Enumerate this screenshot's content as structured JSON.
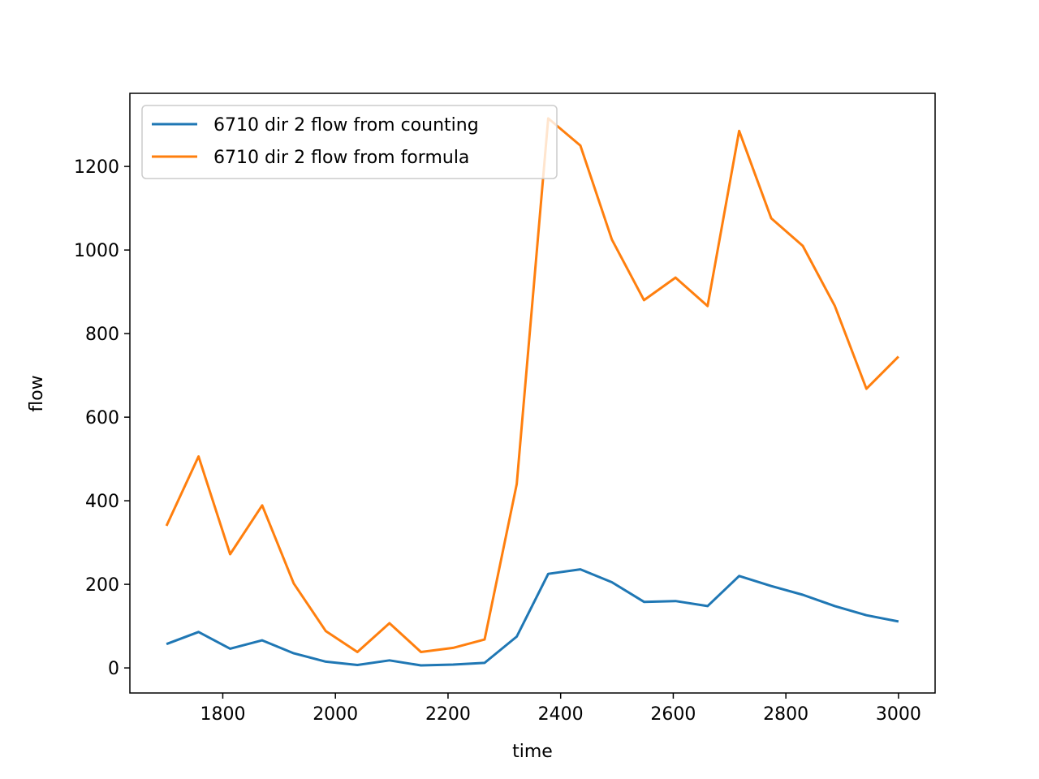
{
  "chart_data": {
    "type": "line",
    "title": "",
    "xlabel": "time",
    "ylabel": "flow",
    "xlim": [
      1635,
      3065
    ],
    "ylim": [
      -60,
      1375
    ],
    "xticks": [
      1800,
      2000,
      2200,
      2400,
      2600,
      2800,
      3000
    ],
    "yticks": [
      0,
      200,
      400,
      600,
      800,
      1000,
      1200
    ],
    "grid": false,
    "legend": "top-left",
    "x": [
      1700,
      1757,
      1813,
      1870,
      1926,
      1983,
      2039,
      2096,
      2152,
      2209,
      2265,
      2322,
      2378,
      2435,
      2491,
      2548,
      2604,
      2661,
      2717,
      2774,
      2830,
      2887,
      2943,
      3000
    ],
    "series": [
      {
        "name": "6710 dir 2 flow from counting",
        "color": "#1f77b4",
        "values": [
          57,
          86,
          46,
          66,
          35,
          15,
          7,
          18,
          6,
          8,
          12,
          75,
          225,
          236,
          205,
          158,
          160,
          148,
          220,
          196,
          175,
          148,
          126,
          111
        ]
      },
      {
        "name": "6710 dir 2 flow from formula",
        "color": "#ff7f0e",
        "values": [
          340,
          506,
          272,
          389,
          202,
          88,
          38,
          107,
          38,
          48,
          68,
          440,
          1315,
          1250,
          1025,
          880,
          934,
          866,
          1285,
          1076,
          1010,
          866,
          668,
          745
        ]
      }
    ]
  }
}
